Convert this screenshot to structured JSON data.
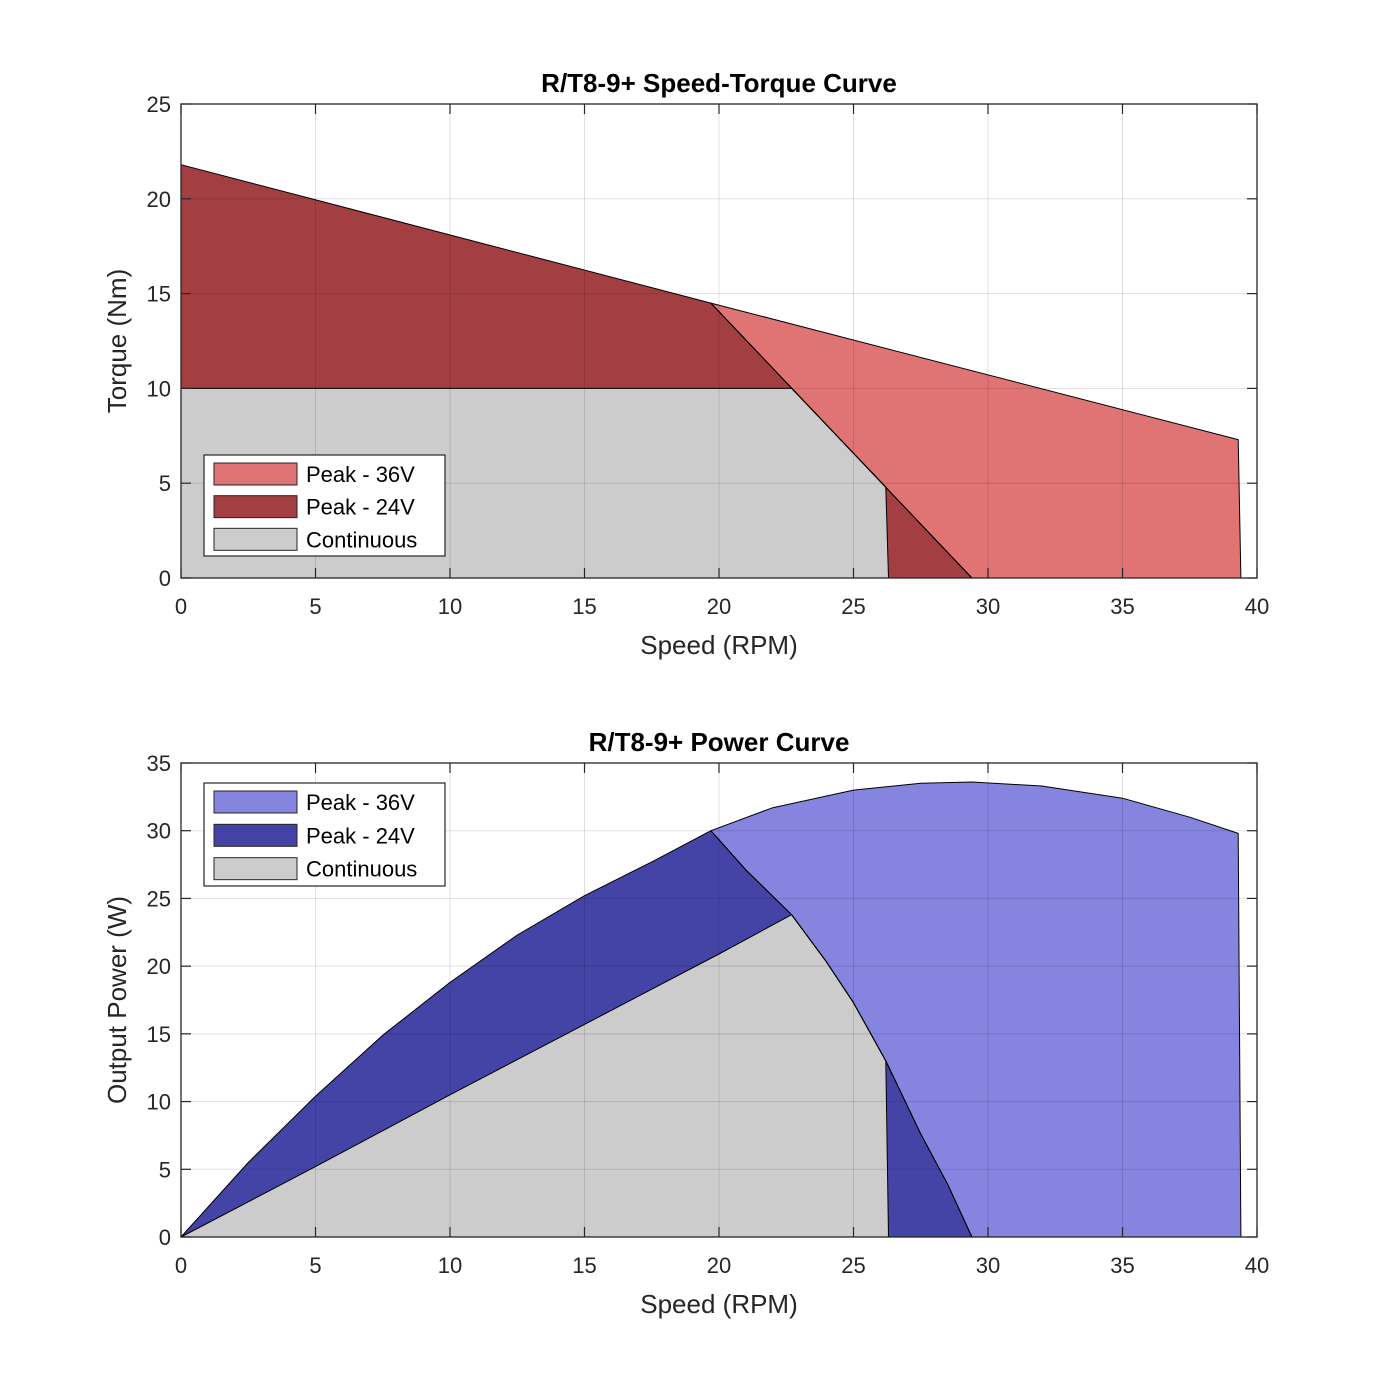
{
  "chart_data": [
    {
      "type": "area",
      "title": "R/T8-9+ Speed-Torque Curve",
      "xlabel": "Speed (RPM)",
      "ylabel": "Torque (Nm)",
      "xlim": [
        0,
        40
      ],
      "ylim": [
        0,
        25
      ],
      "xticks": [
        0,
        5,
        10,
        15,
        20,
        25,
        30,
        35,
        40
      ],
      "yticks": [
        0,
        5,
        10,
        15,
        20,
        25
      ],
      "grid": true,
      "legend_position": "bottom-left",
      "legend": [
        "Peak - 36V",
        "Peak - 24V",
        "Continuous"
      ],
      "series": [
        {
          "name": "Peak - 36V",
          "color": "#e07474",
          "polygon": [
            [
              19.7,
              14.5
            ],
            [
              39.3,
              7.3
            ],
            [
              39.4,
              0
            ],
            [
              29.4,
              0
            ]
          ]
        },
        {
          "name": "Peak - 24V",
          "color": "#a33f42",
          "polygon": [
            [
              0,
              21.8
            ],
            [
              19.7,
              14.5
            ],
            [
              29.4,
              0
            ],
            [
              0,
              0
            ]
          ]
        },
        {
          "name": "Continuous",
          "color": "#cccccc",
          "polygon": [
            [
              0,
              10
            ],
            [
              22.7,
              10
            ],
            [
              26.2,
              4.8
            ],
            [
              26.3,
              0
            ],
            [
              0,
              0
            ]
          ]
        }
      ]
    },
    {
      "type": "area",
      "title": "R/T8-9+ Power Curve",
      "xlabel": "Speed (RPM)",
      "ylabel": "Output Power (W)",
      "xlim": [
        0,
        40
      ],
      "ylim": [
        0,
        35
      ],
      "xticks": [
        0,
        5,
        10,
        15,
        20,
        25,
        30,
        35,
        40
      ],
      "yticks": [
        0,
        5,
        10,
        15,
        20,
        25,
        30,
        35
      ],
      "grid": true,
      "legend_position": "top-left",
      "legend": [
        "Peak - 36V",
        "Peak - 24V",
        "Continuous"
      ],
      "series": [
        {
          "name": "Peak - 36V",
          "color": "#8585e0",
          "polygon": [
            [
              19.7,
              30.0
            ],
            [
              22,
              31.7
            ],
            [
              25,
              33.0
            ],
            [
              27.5,
              33.5
            ],
            [
              29.4,
              33.6
            ],
            [
              32,
              33.3
            ],
            [
              35,
              32.4
            ],
            [
              37.5,
              31.0
            ],
            [
              39.3,
              29.8
            ],
            [
              39.4,
              0
            ],
            [
              29.4,
              0
            ],
            [
              28.5,
              3.9
            ],
            [
              27.5,
              7.6
            ],
            [
              26.2,
              13.0
            ],
            [
              25,
              17.3
            ],
            [
              24,
              20.3
            ],
            [
              22.7,
              23.8
            ],
            [
              21,
              27.1
            ]
          ]
        },
        {
          "name": "Peak - 24V",
          "color": "#4444a6",
          "polygon": [
            [
              0,
              0
            ],
            [
              2.5,
              5.5
            ],
            [
              5,
              10.4
            ],
            [
              7.5,
              14.9
            ],
            [
              10,
              18.8
            ],
            [
              12.5,
              22.3
            ],
            [
              15,
              25.2
            ],
            [
              17.5,
              27.7
            ],
            [
              19.7,
              30.0
            ],
            [
              21,
              27.1
            ],
            [
              22.7,
              23.8
            ],
            [
              24,
              20.3
            ],
            [
              25,
              17.3
            ],
            [
              26.2,
              13.0
            ],
            [
              27.5,
              7.6
            ],
            [
              28.5,
              3.9
            ],
            [
              29.4,
              0
            ]
          ]
        },
        {
          "name": "Continuous",
          "color": "#cccccc",
          "polygon": [
            [
              0,
              0
            ],
            [
              5,
              5.2
            ],
            [
              10,
              10.5
            ],
            [
              15,
              15.7
            ],
            [
              20,
              20.9
            ],
            [
              22.7,
              23.8
            ],
            [
              24,
              20.3
            ],
            [
              25,
              17.3
            ],
            [
              26.2,
              13.0
            ],
            [
              26.3,
              0
            ]
          ]
        }
      ]
    }
  ]
}
